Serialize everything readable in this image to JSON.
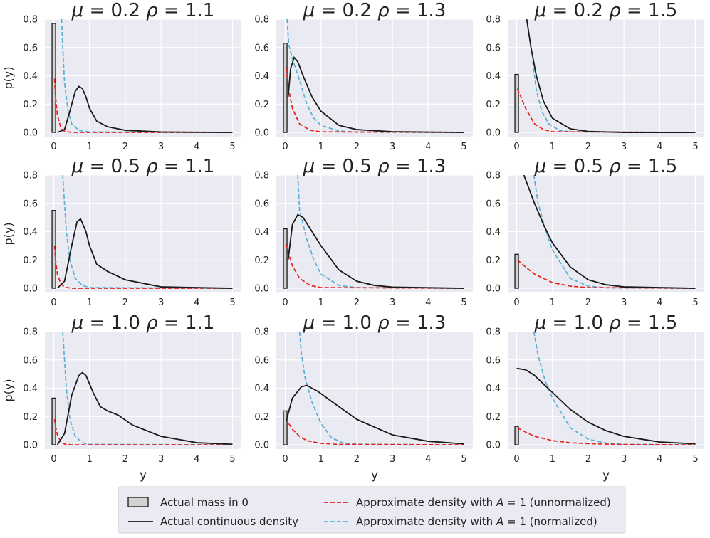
{
  "chart_data": {
    "type": "line",
    "grid": true,
    "xlim": [
      -0.25,
      5.25
    ],
    "ylim": [
      -0.03,
      0.8
    ],
    "xticks": [
      "0",
      "1",
      "2",
      "3",
      "4",
      "5"
    ],
    "yticks": [
      "0.0",
      "0.2",
      "0.4",
      "0.6",
      "0.8"
    ],
    "xlabel": "y",
    "ylabel": "p(y)",
    "colors": {
      "background": "#eaeaf2",
      "grid": "#ffffff",
      "continuous": "#1a1a1a",
      "unnormalized": "#e8201c",
      "normalized": "#5aafd2",
      "mass_fill": "#d3d3d3",
      "mass_edge": "#1a1a1a"
    },
    "legend": {
      "placement": "bottom-center",
      "items": [
        {
          "key": "mass",
          "label": "Actual mass in 0"
        },
        {
          "key": "continuous",
          "label": "Actual continuous density"
        },
        {
          "key": "unnormalized",
          "label": "Approximate density with A = 1 (unnormalized)"
        },
        {
          "key": "normalized",
          "label": "Approximate density with A = 1 (normalized)"
        }
      ]
    },
    "panels": [
      {
        "title": "μ = 0.2   ρ = 1.1",
        "mu": 0.2,
        "rho": 1.1,
        "mass_at_zero": 0.77,
        "continuous": [
          [
            0.1,
            0.0
          ],
          [
            0.3,
            0.02
          ],
          [
            0.45,
            0.15
          ],
          [
            0.6,
            0.29
          ],
          [
            0.7,
            0.325
          ],
          [
            0.8,
            0.31
          ],
          [
            0.9,
            0.25
          ],
          [
            1.0,
            0.17
          ],
          [
            1.2,
            0.08
          ],
          [
            1.5,
            0.04
          ],
          [
            2.0,
            0.015
          ],
          [
            3.0,
            0.003
          ],
          [
            5.0,
            0.0
          ]
        ],
        "unnormalized": [
          [
            0.02,
            0.38
          ],
          [
            0.05,
            0.25
          ],
          [
            0.1,
            0.12
          ],
          [
            0.2,
            0.03
          ],
          [
            0.3,
            0.008
          ],
          [
            0.5,
            0.0
          ],
          [
            5.0,
            0.0
          ]
        ],
        "normalized": [
          [
            0.22,
            0.8
          ],
          [
            0.25,
            0.6
          ],
          [
            0.3,
            0.35
          ],
          [
            0.4,
            0.15
          ],
          [
            0.5,
            0.06
          ],
          [
            0.7,
            0.015
          ],
          [
            1.0,
            0.003
          ],
          [
            5.0,
            0.0
          ]
        ]
      },
      {
        "title": "μ = 0.2   ρ = 1.3",
        "mu": 0.2,
        "rho": 1.3,
        "mass_at_zero": 0.63,
        "continuous": [
          [
            0.08,
            0.25
          ],
          [
            0.15,
            0.45
          ],
          [
            0.25,
            0.53
          ],
          [
            0.35,
            0.5
          ],
          [
            0.5,
            0.4
          ],
          [
            0.75,
            0.25
          ],
          [
            1.0,
            0.15
          ],
          [
            1.5,
            0.05
          ],
          [
            2.0,
            0.02
          ],
          [
            3.0,
            0.005
          ],
          [
            5.0,
            0.0
          ]
        ],
        "unnormalized": [
          [
            0.02,
            0.46
          ],
          [
            0.05,
            0.4
          ],
          [
            0.1,
            0.3
          ],
          [
            0.2,
            0.17
          ],
          [
            0.4,
            0.06
          ],
          [
            0.7,
            0.015
          ],
          [
            1.0,
            0.004
          ],
          [
            5.0,
            0.0
          ]
        ],
        "normalized": [
          [
            0.05,
            0.8
          ],
          [
            0.1,
            0.62
          ],
          [
            0.2,
            0.52
          ],
          [
            0.4,
            0.37
          ],
          [
            0.6,
            0.2
          ],
          [
            0.8,
            0.1
          ],
          [
            1.0,
            0.05
          ],
          [
            1.5,
            0.01
          ],
          [
            2.0,
            0.002
          ],
          [
            5.0,
            0.0
          ]
        ]
      },
      {
        "title": "μ = 0.2   ρ = 1.5",
        "mu": 0.2,
        "rho": 1.5,
        "mass_at_zero": 0.41,
        "continuous": [
          [
            0.28,
            0.8
          ],
          [
            0.4,
            0.6
          ],
          [
            0.55,
            0.4
          ],
          [
            0.75,
            0.22
          ],
          [
            1.0,
            0.1
          ],
          [
            1.5,
            0.025
          ],
          [
            2.0,
            0.007
          ],
          [
            3.0,
            0.0
          ],
          [
            5.0,
            0.0
          ]
        ],
        "unnormalized": [
          [
            0.02,
            0.31
          ],
          [
            0.1,
            0.26
          ],
          [
            0.25,
            0.17
          ],
          [
            0.5,
            0.06
          ],
          [
            0.75,
            0.02
          ],
          [
            1.0,
            0.005
          ],
          [
            5.0,
            0.0
          ]
        ],
        "normalized": [
          [
            0.45,
            0.5
          ],
          [
            0.55,
            0.3
          ],
          [
            0.7,
            0.15
          ],
          [
            0.9,
            0.06
          ],
          [
            1.2,
            0.015
          ],
          [
            1.5,
            0.004
          ],
          [
            5.0,
            0.0
          ]
        ]
      },
      {
        "title": "μ = 0.5   ρ = 1.1",
        "mu": 0.5,
        "rho": 1.1,
        "mass_at_zero": 0.55,
        "continuous": [
          [
            0.1,
            0.0
          ],
          [
            0.3,
            0.05
          ],
          [
            0.5,
            0.3
          ],
          [
            0.65,
            0.47
          ],
          [
            0.75,
            0.49
          ],
          [
            0.9,
            0.4
          ],
          [
            1.0,
            0.3
          ],
          [
            1.2,
            0.17
          ],
          [
            1.5,
            0.12
          ],
          [
            2.0,
            0.06
          ],
          [
            3.0,
            0.01
          ],
          [
            5.0,
            0.0
          ]
        ],
        "unnormalized": [
          [
            0.02,
            0.3
          ],
          [
            0.05,
            0.2
          ],
          [
            0.1,
            0.1
          ],
          [
            0.2,
            0.03
          ],
          [
            0.3,
            0.008
          ],
          [
            0.5,
            0.0
          ],
          [
            5.0,
            0.0
          ]
        ],
        "normalized": [
          [
            0.25,
            0.8
          ],
          [
            0.3,
            0.6
          ],
          [
            0.35,
            0.4
          ],
          [
            0.45,
            0.2
          ],
          [
            0.6,
            0.07
          ],
          [
            0.8,
            0.02
          ],
          [
            1.0,
            0.005
          ],
          [
            5.0,
            0.0
          ]
        ]
      },
      {
        "title": "μ = 0.5   ρ = 1.3",
        "mu": 0.5,
        "rho": 1.3,
        "mass_at_zero": 0.42,
        "continuous": [
          [
            0.08,
            0.2
          ],
          [
            0.2,
            0.45
          ],
          [
            0.35,
            0.52
          ],
          [
            0.5,
            0.5
          ],
          [
            0.75,
            0.4
          ],
          [
            1.0,
            0.3
          ],
          [
            1.5,
            0.13
          ],
          [
            2.0,
            0.05
          ],
          [
            2.5,
            0.02
          ],
          [
            3.0,
            0.008
          ],
          [
            5.0,
            0.0
          ]
        ],
        "unnormalized": [
          [
            0.02,
            0.31
          ],
          [
            0.1,
            0.24
          ],
          [
            0.2,
            0.16
          ],
          [
            0.4,
            0.07
          ],
          [
            0.7,
            0.02
          ],
          [
            1.0,
            0.005
          ],
          [
            5.0,
            0.0
          ]
        ],
        "normalized": [
          [
            0.35,
            0.8
          ],
          [
            0.4,
            0.55
          ],
          [
            0.6,
            0.35
          ],
          [
            0.8,
            0.2
          ],
          [
            1.0,
            0.1
          ],
          [
            1.5,
            0.02
          ],
          [
            2.0,
            0.005
          ],
          [
            5.0,
            0.0
          ]
        ]
      },
      {
        "title": "μ = 0.5   ρ = 1.5",
        "mu": 0.5,
        "rho": 1.5,
        "mass_at_zero": 0.24,
        "continuous": [
          [
            0.2,
            0.8
          ],
          [
            0.5,
            0.6
          ],
          [
            0.75,
            0.45
          ],
          [
            1.0,
            0.32
          ],
          [
            1.5,
            0.15
          ],
          [
            2.0,
            0.06
          ],
          [
            2.5,
            0.025
          ],
          [
            3.0,
            0.01
          ],
          [
            5.0,
            0.0
          ]
        ],
        "unnormalized": [
          [
            0.02,
            0.2
          ],
          [
            0.25,
            0.15
          ],
          [
            0.5,
            0.1
          ],
          [
            1.0,
            0.04
          ],
          [
            1.5,
            0.015
          ],
          [
            2.0,
            0.005
          ],
          [
            5.0,
            0.0
          ]
        ],
        "normalized": [
          [
            0.48,
            0.8
          ],
          [
            0.6,
            0.6
          ],
          [
            0.8,
            0.42
          ],
          [
            1.0,
            0.27
          ],
          [
            1.5,
            0.07
          ],
          [
            2.0,
            0.015
          ],
          [
            2.5,
            0.003
          ],
          [
            5.0,
            0.0
          ]
        ]
      },
      {
        "title": "μ = 1.0   ρ = 1.1",
        "mu": 1.0,
        "rho": 1.1,
        "mass_at_zero": 0.33,
        "continuous": [
          [
            0.1,
            0.0
          ],
          [
            0.3,
            0.08
          ],
          [
            0.5,
            0.35
          ],
          [
            0.7,
            0.49
          ],
          [
            0.8,
            0.51
          ],
          [
            0.9,
            0.49
          ],
          [
            1.1,
            0.37
          ],
          [
            1.3,
            0.27
          ],
          [
            1.5,
            0.24
          ],
          [
            1.8,
            0.21
          ],
          [
            2.2,
            0.14
          ],
          [
            3.0,
            0.06
          ],
          [
            4.0,
            0.015
          ],
          [
            5.0,
            0.004
          ]
        ],
        "unnormalized": [
          [
            0.02,
            0.18
          ],
          [
            0.05,
            0.13
          ],
          [
            0.1,
            0.07
          ],
          [
            0.2,
            0.02
          ],
          [
            0.3,
            0.005
          ],
          [
            0.5,
            0.0
          ],
          [
            5.0,
            0.0
          ]
        ],
        "normalized": [
          [
            0.25,
            0.8
          ],
          [
            0.3,
            0.6
          ],
          [
            0.35,
            0.4
          ],
          [
            0.45,
            0.18
          ],
          [
            0.6,
            0.06
          ],
          [
            0.8,
            0.015
          ],
          [
            1.0,
            0.003
          ],
          [
            5.0,
            0.0
          ]
        ]
      },
      {
        "title": "μ = 1.0   ρ = 1.3",
        "mu": 1.0,
        "rho": 1.3,
        "mass_at_zero": 0.24,
        "continuous": [
          [
            0.03,
            0.17
          ],
          [
            0.2,
            0.33
          ],
          [
            0.45,
            0.41
          ],
          [
            0.6,
            0.42
          ],
          [
            0.9,
            0.38
          ],
          [
            1.5,
            0.27
          ],
          [
            2.0,
            0.18
          ],
          [
            3.0,
            0.07
          ],
          [
            4.0,
            0.025
          ],
          [
            5.0,
            0.007
          ]
        ],
        "unnormalized": [
          [
            0.02,
            0.19
          ],
          [
            0.1,
            0.15
          ],
          [
            0.2,
            0.11
          ],
          [
            0.4,
            0.06
          ],
          [
            0.6,
            0.03
          ],
          [
            1.0,
            0.01
          ],
          [
            1.5,
            0.003
          ],
          [
            5.0,
            0.0
          ]
        ],
        "normalized": [
          [
            0.4,
            0.8
          ],
          [
            0.45,
            0.65
          ],
          [
            0.55,
            0.48
          ],
          [
            0.75,
            0.3
          ],
          [
            1.0,
            0.15
          ],
          [
            1.3,
            0.05
          ],
          [
            1.6,
            0.015
          ],
          [
            2.0,
            0.004
          ],
          [
            5.0,
            0.0
          ]
        ]
      },
      {
        "title": "μ = 1.0   ρ = 1.5",
        "mu": 1.0,
        "rho": 1.5,
        "mass_at_zero": 0.13,
        "continuous": [
          [
            0.0,
            0.54
          ],
          [
            0.25,
            0.53
          ],
          [
            0.5,
            0.49
          ],
          [
            0.75,
            0.43
          ],
          [
            1.0,
            0.37
          ],
          [
            1.5,
            0.25
          ],
          [
            2.0,
            0.16
          ],
          [
            2.5,
            0.1
          ],
          [
            3.0,
            0.06
          ],
          [
            4.0,
            0.02
          ],
          [
            5.0,
            0.007
          ]
        ],
        "unnormalized": [
          [
            0.02,
            0.12
          ],
          [
            0.25,
            0.09
          ],
          [
            0.5,
            0.06
          ],
          [
            1.0,
            0.03
          ],
          [
            1.5,
            0.015
          ],
          [
            2.0,
            0.008
          ],
          [
            3.0,
            0.002
          ],
          [
            5.0,
            0.0
          ]
        ],
        "normalized": [
          [
            0.48,
            0.8
          ],
          [
            0.6,
            0.63
          ],
          [
            0.8,
            0.45
          ],
          [
            1.0,
            0.33
          ],
          [
            1.5,
            0.12
          ],
          [
            2.0,
            0.04
          ],
          [
            2.5,
            0.012
          ],
          [
            3.0,
            0.003
          ],
          [
            5.0,
            0.0
          ]
        ]
      }
    ]
  }
}
